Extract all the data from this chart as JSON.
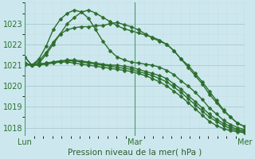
{
  "background_color": "#cce8ee",
  "grid_color_major": "#b8d4da",
  "grid_color_minor": "#ddeef2",
  "line_color": "#2d6e2d",
  "marker": "D",
  "markersize": 2.5,
  "linewidth": 1.0,
  "title": "Pression niveau de la mer( hPa )",
  "title_fontsize": 7.5,
  "tick_fontsize": 7,
  "xlim": [
    0,
    96
  ],
  "ylim": [
    1017.6,
    1024.0
  ],
  "yticks": [
    1018,
    1019,
    1020,
    1021,
    1022,
    1023
  ],
  "xtick_positions": [
    0,
    48,
    96
  ],
  "xtick_labels": [
    "Lun",
    "Mar",
    "Mer"
  ],
  "series": [
    [
      1021.4,
      1021.0,
      1021.1,
      1021.5,
      1022.0,
      1022.5,
      1023.0,
      1023.3,
      1023.55,
      1023.65,
      1023.5,
      1023.3,
      1023.1,
      1022.9,
      1022.75,
      1022.65,
      1022.55,
      1022.45,
      1022.35,
      1022.2,
      1022.0,
      1021.7,
      1021.3,
      1021.0,
      1020.6,
      1020.2,
      1019.75,
      1019.3,
      1018.85,
      1018.5,
      1018.2,
      1018.05
    ],
    [
      1021.4,
      1021.0,
      1021.2,
      1021.6,
      1022.1,
      1022.5,
      1022.7,
      1022.8,
      1022.85,
      1022.85,
      1022.9,
      1022.9,
      1023.0,
      1023.05,
      1022.95,
      1022.85,
      1022.7,
      1022.5,
      1022.3,
      1022.15,
      1022.0,
      1021.7,
      1021.3,
      1020.9,
      1020.5,
      1020.1,
      1019.6,
      1019.2,
      1018.8,
      1018.5,
      1018.2,
      1018.05
    ],
    [
      1021.1,
      1021.0,
      1021.3,
      1021.9,
      1022.7,
      1023.2,
      1023.5,
      1023.65,
      1023.55,
      1023.25,
      1022.7,
      1022.15,
      1021.7,
      1021.4,
      1021.25,
      1021.15,
      1021.1,
      1021.05,
      1021.0,
      1020.9,
      1020.75,
      1020.55,
      1020.25,
      1020.0,
      1019.7,
      1019.35,
      1018.95,
      1018.65,
      1018.35,
      1018.15,
      1018.0,
      1017.9
    ],
    [
      1021.1,
      1021.0,
      1021.05,
      1021.1,
      1021.15,
      1021.2,
      1021.25,
      1021.25,
      1021.2,
      1021.15,
      1021.1,
      1021.05,
      1021.0,
      1021.0,
      1020.95,
      1020.9,
      1020.8,
      1020.7,
      1020.6,
      1020.5,
      1020.35,
      1020.1,
      1019.85,
      1019.55,
      1019.25,
      1018.95,
      1018.65,
      1018.4,
      1018.2,
      1018.05,
      1017.9,
      1017.85
    ],
    [
      1021.1,
      1021.0,
      1021.05,
      1021.1,
      1021.15,
      1021.2,
      1021.2,
      1021.2,
      1021.15,
      1021.1,
      1021.05,
      1021.0,
      1020.95,
      1020.9,
      1020.85,
      1020.8,
      1020.7,
      1020.6,
      1020.5,
      1020.35,
      1020.2,
      1019.95,
      1019.7,
      1019.4,
      1019.1,
      1018.8,
      1018.5,
      1018.3,
      1018.1,
      1017.95,
      1017.85,
      1017.8
    ],
    [
      1021.0,
      1021.0,
      1021.0,
      1021.05,
      1021.1,
      1021.15,
      1021.15,
      1021.1,
      1021.05,
      1021.0,
      1020.95,
      1020.9,
      1020.85,
      1020.8,
      1020.75,
      1020.7,
      1020.6,
      1020.5,
      1020.35,
      1020.2,
      1020.0,
      1019.75,
      1019.5,
      1019.2,
      1018.9,
      1018.6,
      1018.3,
      1018.1,
      1017.95,
      1017.85,
      1017.8,
      1017.75
    ]
  ]
}
